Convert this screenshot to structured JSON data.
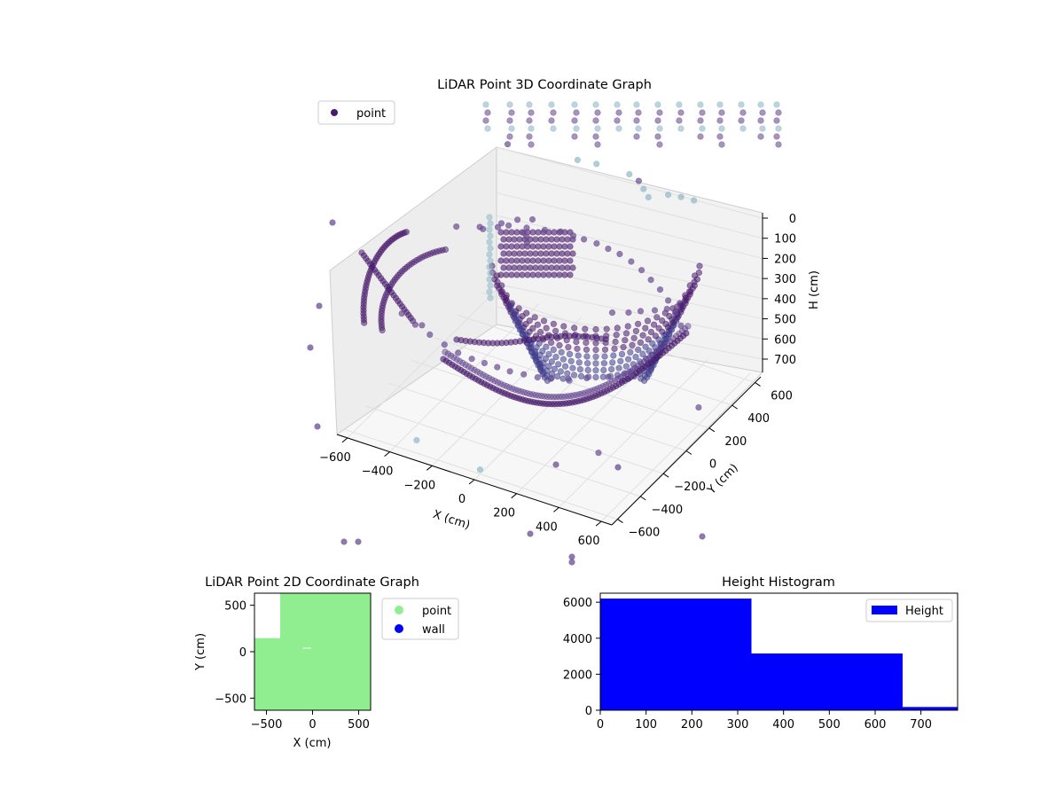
{
  "chart_data": [
    {
      "type": "scatter",
      "title": "LiDAR Point 3D Coordinate Graph",
      "xlabel": "X (cm)",
      "ylabel": "Y (cm)",
      "zlabel": "H (cm)",
      "xlim": [
        -650,
        650
      ],
      "ylim": [
        -650,
        650
      ],
      "zlim": [
        780,
        0
      ],
      "xticks": [
        -600,
        -400,
        -200,
        0,
        200,
        400,
        600
      ],
      "yticks": [
        -600,
        -400,
        -200,
        0,
        200,
        400,
        600
      ],
      "zticks": [
        0,
        100,
        200,
        300,
        400,
        500,
        600,
        700
      ],
      "legend": {
        "placement": "upper-left",
        "entries": [
          "point"
        ]
      },
      "grid": true,
      "colors": {
        "dense": "#481a6c",
        "mid": "#6a4c93",
        "sparse": "#8fb8c8"
      },
      "series": [
        {
          "name": "point",
          "x": [
            -600,
            -500,
            -420,
            -380,
            -300,
            -220,
            -150,
            -90,
            -40,
            20,
            80,
            140,
            200,
            260,
            320,
            380,
            440,
            500,
            560,
            -560,
            -480,
            -400,
            -320,
            -250,
            -180,
            -120,
            -60,
            0,
            60,
            120,
            180,
            250,
            320,
            400,
            480,
            -420,
            -360,
            -300,
            -240,
            -200,
            -160,
            -130,
            300,
            350,
            380,
            420,
            450,
            470,
            -520,
            560,
            -600,
            600,
            100,
            200,
            300,
            -300,
            0,
            -100,
            150,
            250,
            350,
            -200,
            50
          ],
          "y": [
            300,
            320,
            330,
            350,
            360,
            370,
            380,
            380,
            380,
            380,
            370,
            360,
            350,
            330,
            300,
            270,
            230,
            180,
            120,
            -250,
            -280,
            -300,
            -320,
            -330,
            -340,
            -340,
            -340,
            -340,
            -330,
            -320,
            -310,
            -290,
            -260,
            -220,
            -170,
            200,
            250,
            280,
            300,
            150,
            100,
            50,
            0,
            50,
            100,
            150,
            200,
            250,
            600,
            -600,
            0,
            200,
            600,
            500,
            600,
            -600,
            -600,
            600,
            550,
            580,
            620,
            620,
            610
          ],
          "z": [
            300,
            280,
            260,
            250,
            240,
            230,
            220,
            220,
            220,
            220,
            220,
            220,
            230,
            240,
            250,
            260,
            270,
            280,
            290,
            400,
            410,
            420,
            430,
            440,
            440,
            440,
            440,
            440,
            440,
            440,
            430,
            420,
            410,
            400,
            390,
            200,
            180,
            160,
            150,
            120,
            100,
            90,
            250,
            260,
            270,
            280,
            290,
            300,
            50,
            500,
            600,
            700,
            20,
            10,
            30,
            720,
            760,
            5,
            15,
            25,
            40,
            30,
            10
          ]
        }
      ]
    },
    {
      "type": "scatter",
      "title": "LiDAR Point 2D Coordinate Graph",
      "xlabel": "X (cm)",
      "ylabel": "Y (cm)",
      "xlim": [
        -630,
        630
      ],
      "ylim": [
        -630,
        630
      ],
      "xticks": [
        -500,
        0,
        500
      ],
      "yticks": [
        -500,
        0,
        500
      ],
      "legend": {
        "placement": "outside-right",
        "entries": [
          "point",
          "wall"
        ]
      },
      "colors": {
        "point": "#90ee90",
        "wall": "#0000ff"
      },
      "series": [
        {
          "name": "point",
          "x": [
            -580,
            -520,
            -460,
            -400,
            -340,
            -280,
            -220,
            -160,
            -100,
            -40,
            20,
            80,
            140,
            200,
            260,
            320,
            380,
            440,
            500,
            560,
            -560,
            -500,
            -440,
            -380,
            -320,
            -260,
            -200,
            -140,
            -80,
            -20,
            40,
            100,
            160,
            220,
            280,
            340,
            400,
            460,
            520,
            580,
            0,
            100,
            200,
            300,
            400,
            500,
            560,
            -300,
            -200,
            -100
          ],
          "y": [
            -600,
            -560,
            -520,
            -480,
            -440,
            -400,
            -360,
            -320,
            -280,
            -240,
            -200,
            -160,
            -120,
            -80,
            -40,
            0,
            40,
            80,
            120,
            160,
            -200,
            -150,
            -100,
            -50,
            0,
            50,
            100,
            150,
            200,
            250,
            300,
            350,
            400,
            450,
            500,
            550,
            580,
            600,
            560,
            520,
            600,
            580,
            560,
            540,
            520,
            500,
            480,
            -300,
            -350,
            -400
          ]
        },
        {
          "name": "wall",
          "x": [],
          "y": []
        }
      ]
    },
    {
      "type": "bar",
      "title": "Height Histogram",
      "xlim": [
        0,
        780
      ],
      "ylim": [
        0,
        6500
      ],
      "xticks": [
        0,
        100,
        200,
        300,
        400,
        500,
        600,
        700
      ],
      "yticks": [
        0,
        2000,
        4000,
        6000
      ],
      "legend": {
        "placement": "top-right",
        "entries": [
          "Height"
        ]
      },
      "colors": {
        "bar": "#0000ff"
      },
      "bins": [
        [
          0,
          330
        ],
        [
          330,
          660
        ],
        [
          660,
          790
        ]
      ],
      "series": [
        {
          "name": "Height",
          "values": [
            6200,
            3150,
            180
          ]
        }
      ]
    }
  ]
}
